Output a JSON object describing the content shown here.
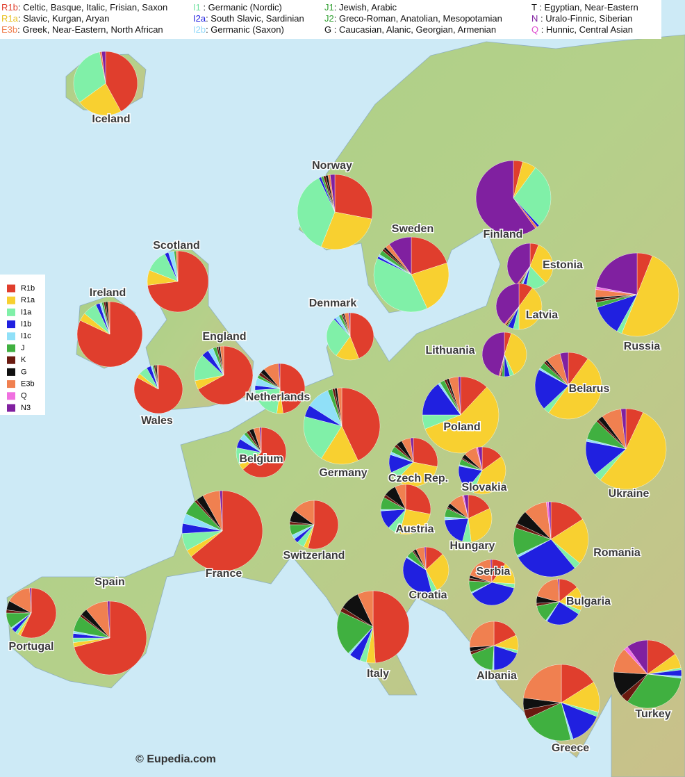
{
  "legend_top": [
    {
      "code": "R1b",
      "color": "#e03e2d",
      "text": ": Celtic, Basque, Italic, Frisian, Saxon"
    },
    {
      "code": "R1a",
      "color": "#e8c020",
      "text": ": Slavic, Kurgan, Aryan"
    },
    {
      "code": "E3b",
      "color": "#f08050",
      "text": ": Greek, Near-Eastern, North African"
    },
    {
      "code": "I1",
      "color": "#70e0a0",
      "text": "  : Germanic (Nordic)"
    },
    {
      "code": "I2a",
      "color": "#2020e0",
      "text": ": South Slavic, Sardinian"
    },
    {
      "code": "I2b",
      "color": "#90d8f8",
      "text": ": Germanic (Saxon)"
    },
    {
      "code": "J1",
      "color": "#30a030",
      "text": ": Jewish, Arabic"
    },
    {
      "code": "J2",
      "color": "#30a030",
      "text": ": Greco-Roman, Anatolian, Mesopotamian"
    },
    {
      "code": "G",
      "color": "#101010",
      "text": " : Caucasian, Alanic, Georgian, Armenian"
    },
    {
      "code": "T",
      "color": "#101010",
      "text": " : Egyptian, Near-Eastern"
    },
    {
      "code": "N",
      "color": "#8020a0",
      "text": " : Uralo-Finnic, Siberian"
    },
    {
      "code": "Q",
      "color": "#e050d0",
      "text": " : Hunnic, Central Asian"
    }
  ],
  "legend": {
    "groups": [
      {
        "name": "R1b",
        "color": "#e03e2d"
      },
      {
        "name": "R1a",
        "color": "#f8d030"
      },
      {
        "name": "I1a",
        "color": "#80f0a8"
      },
      {
        "name": "I1b",
        "color": "#2020e0"
      },
      {
        "name": "I1c",
        "color": "#90e0f8"
      },
      {
        "name": "J",
        "color": "#40b040"
      },
      {
        "name": "K",
        "color": "#6a1a10"
      },
      {
        "name": "G",
        "color": "#101010"
      },
      {
        "name": "E3b",
        "color": "#f08050"
      },
      {
        "name": "Q",
        "color": "#f070e0"
      },
      {
        "name": "N3",
        "color": "#8020a0"
      }
    ]
  },
  "countries": [
    {
      "name": "Iceland",
      "values": [
        42,
        23,
        32,
        0,
        0,
        0,
        0,
        0,
        1,
        0,
        2
      ]
    },
    {
      "name": "Norway",
      "values": [
        28,
        28,
        37,
        1,
        0,
        1,
        1,
        1,
        1,
        0,
        2
      ]
    },
    {
      "name": "Sweden",
      "values": [
        20,
        23,
        39,
        1,
        1,
        2,
        1,
        1,
        2,
        0,
        10
      ]
    },
    {
      "name": "Finland",
      "values": [
        4,
        6,
        28,
        1,
        0,
        0,
        0,
        0,
        1,
        0,
        60
      ]
    },
    {
      "name": "Scotland",
      "values": [
        73,
        8,
        12,
        2,
        3,
        1,
        0,
        0,
        1,
        0,
        0
      ]
    },
    {
      "name": "Ireland",
      "values": [
        82,
        4,
        7,
        2,
        1,
        1,
        1,
        1,
        1,
        0,
        0
      ]
    },
    {
      "name": "Denmark",
      "values": [
        44,
        16,
        28,
        1,
        3,
        2,
        1,
        1,
        3,
        0,
        1
      ]
    },
    {
      "name": "Estonia",
      "values": [
        6,
        32,
        15,
        3,
        1,
        1,
        1,
        0,
        1,
        0,
        40
      ]
    },
    {
      "name": "Russia",
      "values": [
        6,
        50,
        2,
        12,
        0,
        2,
        1,
        1,
        3,
        1,
        22
      ]
    },
    {
      "name": "Latvia",
      "values": [
        10,
        40,
        4,
        4,
        0,
        1,
        1,
        0,
        1,
        0,
        39
      ]
    },
    {
      "name": "Lithuania",
      "values": [
        5,
        38,
        3,
        4,
        0,
        2,
        1,
        0,
        1,
        0,
        46
      ]
    },
    {
      "name": "England",
      "values": [
        67,
        5,
        15,
        4,
        3,
        2,
        1,
        1,
        2,
        0,
        0
      ]
    },
    {
      "name": "Wales",
      "values": [
        83,
        3,
        6,
        3,
        1,
        1,
        1,
        1,
        1,
        0,
        0
      ]
    },
    {
      "name": "Netherlands",
      "values": [
        48,
        4,
        22,
        3,
        5,
        2,
        2,
        3,
        10,
        0,
        1
      ]
    },
    {
      "name": "Germany",
      "values": [
        43,
        16,
        20,
        5,
        10,
        2,
        1,
        1,
        2,
        0,
        0
      ]
    },
    {
      "name": "Belgium",
      "values": [
        63,
        4,
        11,
        6,
        4,
        2,
        2,
        3,
        4,
        0,
        1
      ]
    },
    {
      "name": "France",
      "values": [
        64,
        3,
        7,
        4,
        4,
        6,
        1,
        3,
        7,
        0,
        1
      ]
    },
    {
      "name": "Poland",
      "values": [
        12,
        57,
        6,
        15,
        1,
        2,
        1,
        1,
        4,
        0,
        1
      ]
    },
    {
      "name": "Belarus",
      "values": [
        10,
        50,
        3,
        20,
        1,
        3,
        1,
        1,
        7,
        0,
        4
      ]
    },
    {
      "name": "Ukraine",
      "values": [
        7,
        54,
        3,
        14,
        1,
        8,
        1,
        2,
        8,
        0,
        2
      ]
    },
    {
      "name": "Czech Rep.",
      "values": [
        28,
        34,
        6,
        12,
        2,
        4,
        2,
        4,
        6,
        0,
        2
      ]
    },
    {
      "name": "Slovakia",
      "values": [
        15,
        41,
        5,
        17,
        1,
        4,
        1,
        3,
        9,
        1,
        3
      ]
    },
    {
      "name": "Switzerland",
      "values": [
        54,
        3,
        5,
        3,
        3,
        7,
        2,
        8,
        15,
        0,
        0
      ]
    },
    {
      "name": "Austria",
      "values": [
        28,
        26,
        8,
        12,
        1,
        8,
        2,
        8,
        7,
        0,
        0
      ]
    },
    {
      "name": "Hungary",
      "values": [
        18,
        30,
        6,
        20,
        2,
        6,
        1,
        3,
        10,
        1,
        3
      ]
    },
    {
      "name": "Romania",
      "values": [
        16,
        20,
        3,
        28,
        1,
        12,
        2,
        6,
        10,
        1,
        1
      ]
    },
    {
      "name": "Croatia",
      "values": [
        13,
        29,
        4,
        38,
        1,
        5,
        1,
        2,
        6,
        0,
        1
      ]
    },
    {
      "name": "Serbia",
      "values": [
        10,
        16,
        3,
        38,
        1,
        8,
        2,
        2,
        19,
        0,
        1
      ]
    },
    {
      "name": "Bulgaria",
      "values": [
        14,
        17,
        3,
        25,
        1,
        12,
        2,
        5,
        20,
        0,
        1
      ]
    },
    {
      "name": "Italy",
      "values": [
        49,
        4,
        3,
        5,
        1,
        20,
        2,
        9,
        7,
        0,
        0
      ]
    },
    {
      "name": "Spain",
      "values": [
        71,
        2,
        2,
        2,
        1,
        7,
        1,
        3,
        10,
        0,
        1
      ]
    },
    {
      "name": "Portugal",
      "values": [
        57,
        2,
        2,
        3,
        1,
        10,
        2,
        6,
        16,
        0,
        1
      ]
    },
    {
      "name": "Albania",
      "values": [
        18,
        10,
        2,
        20,
        1,
        18,
        2,
        3,
        26,
        0,
        0
      ]
    },
    {
      "name": "Greece",
      "values": [
        16,
        13,
        2,
        14,
        1,
        22,
        4,
        5,
        23,
        0,
        0
      ]
    },
    {
      "name": "Turkey",
      "values": [
        15,
        7,
        1,
        3,
        1,
        33,
        4,
        12,
        12,
        2,
        10
      ]
    }
  ],
  "credit": "© Eupedia.com"
}
